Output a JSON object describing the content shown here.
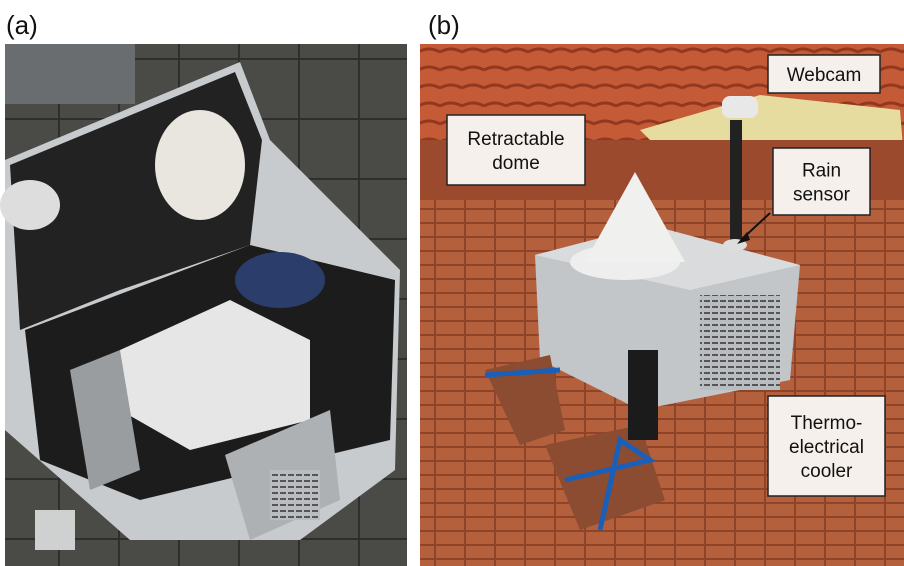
{
  "panels": [
    {
      "label": "(a)"
    },
    {
      "label": "(b)",
      "callouts": [
        {
          "lines": [
            "Webcam"
          ]
        },
        {
          "lines": [
            "Retractable",
            "dome"
          ]
        },
        {
          "lines": [
            "Rain",
            "sensor"
          ]
        },
        {
          "lines": [
            "Thermo-",
            "electrical",
            "cooler"
          ]
        }
      ]
    }
  ]
}
